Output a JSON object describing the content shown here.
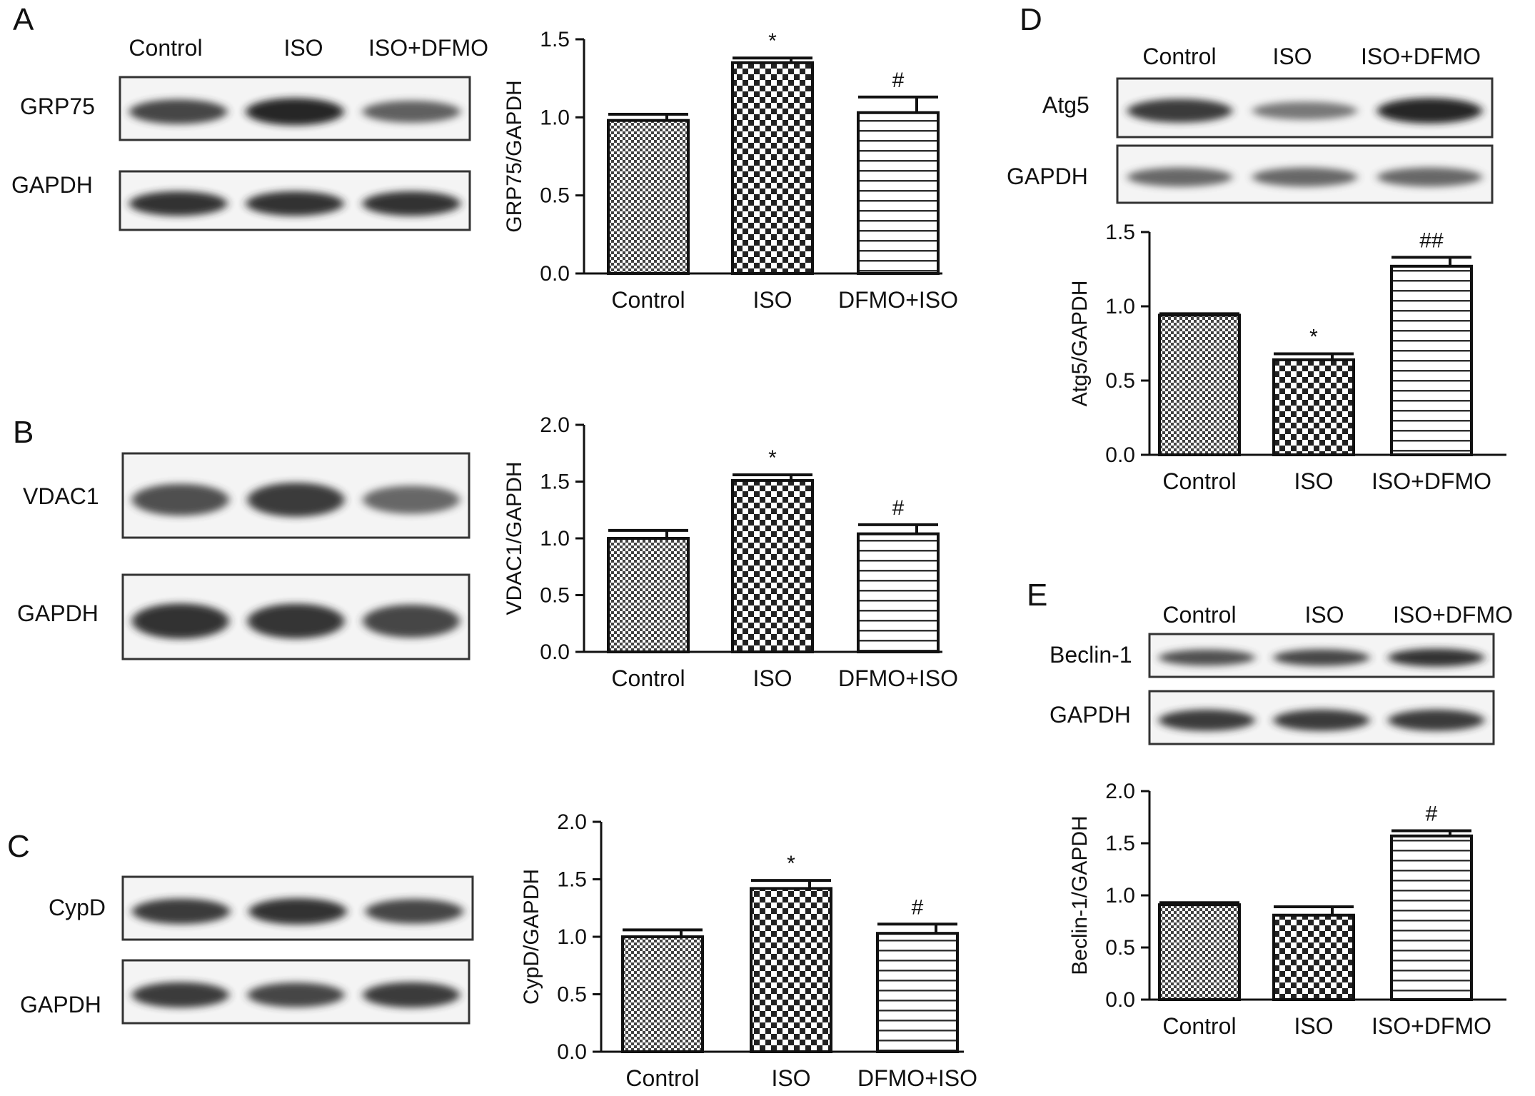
{
  "panels": [
    {
      "letter": "A",
      "lanes": [
        "Control",
        "ISO",
        "ISO+DFMO"
      ],
      "blots": [
        {
          "label": "GRP75",
          "intensity": [
            0.8,
            0.95,
            0.65
          ]
        },
        {
          "label": "GAPDH",
          "intensity": [
            0.9,
            0.9,
            0.9
          ]
        }
      ],
      "chart_data": {
        "type": "bar",
        "categories": [
          "Control",
          "ISO",
          "DFMO+ISO"
        ],
        "values": [
          0.98,
          1.35,
          1.03
        ],
        "errors": [
          0.04,
          0.03,
          0.1
        ],
        "significance": [
          "",
          "*",
          "#"
        ],
        "ylabel": "GRP75/GAPDH",
        "ylim": [
          0,
          1.5
        ],
        "yticks": [
          "0.0",
          "0.5",
          "1.0",
          "1.5"
        ],
        "patterns": [
          "dots",
          "checker",
          "hlines"
        ]
      }
    },
    {
      "letter": "B",
      "lanes": [],
      "blots": [
        {
          "label": "VDAC1",
          "intensity": [
            0.75,
            0.85,
            0.6
          ]
        },
        {
          "label": "GAPDH",
          "intensity": [
            0.9,
            0.88,
            0.8
          ]
        }
      ],
      "chart_data": {
        "type": "bar",
        "categories": [
          "Control",
          "ISO",
          "DFMO+ISO"
        ],
        "values": [
          1.0,
          1.51,
          1.04
        ],
        "errors": [
          0.07,
          0.05,
          0.08
        ],
        "significance": [
          "",
          "*",
          "#"
        ],
        "ylabel": "VDAC1/GAPDH",
        "ylim": [
          0,
          2.0
        ],
        "yticks": [
          "0.0",
          "0.5",
          "1.0",
          "1.5",
          "2.0"
        ],
        "patterns": [
          "dots",
          "checker",
          "hlines"
        ]
      }
    },
    {
      "letter": "C",
      "lanes": [],
      "blots": [
        {
          "label": "CypD",
          "intensity": [
            0.85,
            0.9,
            0.8
          ]
        },
        {
          "label": "GAPDH",
          "intensity": [
            0.85,
            0.8,
            0.85
          ]
        }
      ],
      "chart_data": {
        "type": "bar",
        "categories": [
          "Control",
          "ISO",
          "DFMO+ISO"
        ],
        "values": [
          1.0,
          1.42,
          1.03
        ],
        "errors": [
          0.06,
          0.07,
          0.08
        ],
        "significance": [
          "",
          "*",
          "#"
        ],
        "ylabel": "CypD/GAPDH",
        "ylim": [
          0,
          2.0
        ],
        "yticks": [
          "0.0",
          "0.5",
          "1.0",
          "1.5",
          "2.0"
        ],
        "patterns": [
          "dots",
          "checker",
          "hlines"
        ]
      }
    },
    {
      "letter": "D",
      "lanes": [
        "Control",
        "ISO",
        "ISO+DFMO"
      ],
      "blots": [
        {
          "label": "Atg5",
          "intensity": [
            0.85,
            0.5,
            0.95
          ]
        },
        {
          "label": "GAPDH",
          "intensity": [
            0.6,
            0.6,
            0.6
          ]
        }
      ],
      "chart_data": {
        "type": "bar",
        "categories": [
          "Control",
          "ISO",
          "ISO+DFMO"
        ],
        "values": [
          0.94,
          0.64,
          1.27
        ],
        "errors": [
          0.01,
          0.04,
          0.06
        ],
        "significance": [
          "",
          "*",
          "##"
        ],
        "ylabel": "Atg5/GAPDH",
        "ylim": [
          0,
          1.5
        ],
        "yticks": [
          "0.0",
          "0.5",
          "1.0",
          "1.5"
        ],
        "patterns": [
          "dots",
          "checker",
          "hlines"
        ]
      }
    },
    {
      "letter": "E",
      "lanes": [
        "Control",
        "ISO",
        "ISO+DFMO"
      ],
      "blots": [
        {
          "label": "Beclin-1",
          "intensity": [
            0.75,
            0.8,
            0.9
          ]
        },
        {
          "label": "GAPDH",
          "intensity": [
            0.85,
            0.85,
            0.85
          ]
        }
      ],
      "chart_data": {
        "type": "bar",
        "categories": [
          "Control",
          "ISO",
          "ISO+DFMO"
        ],
        "values": [
          0.91,
          0.81,
          1.57
        ],
        "errors": [
          0.02,
          0.08,
          0.05
        ],
        "significance": [
          "",
          "",
          "#"
        ],
        "ylabel": "Beclin-1/GAPDH",
        "ylim": [
          0,
          2.0
        ],
        "yticks": [
          "0.0",
          "0.5",
          "1.0",
          "1.5",
          "2.0"
        ],
        "patterns": [
          "dots",
          "checker",
          "hlines"
        ]
      }
    }
  ]
}
